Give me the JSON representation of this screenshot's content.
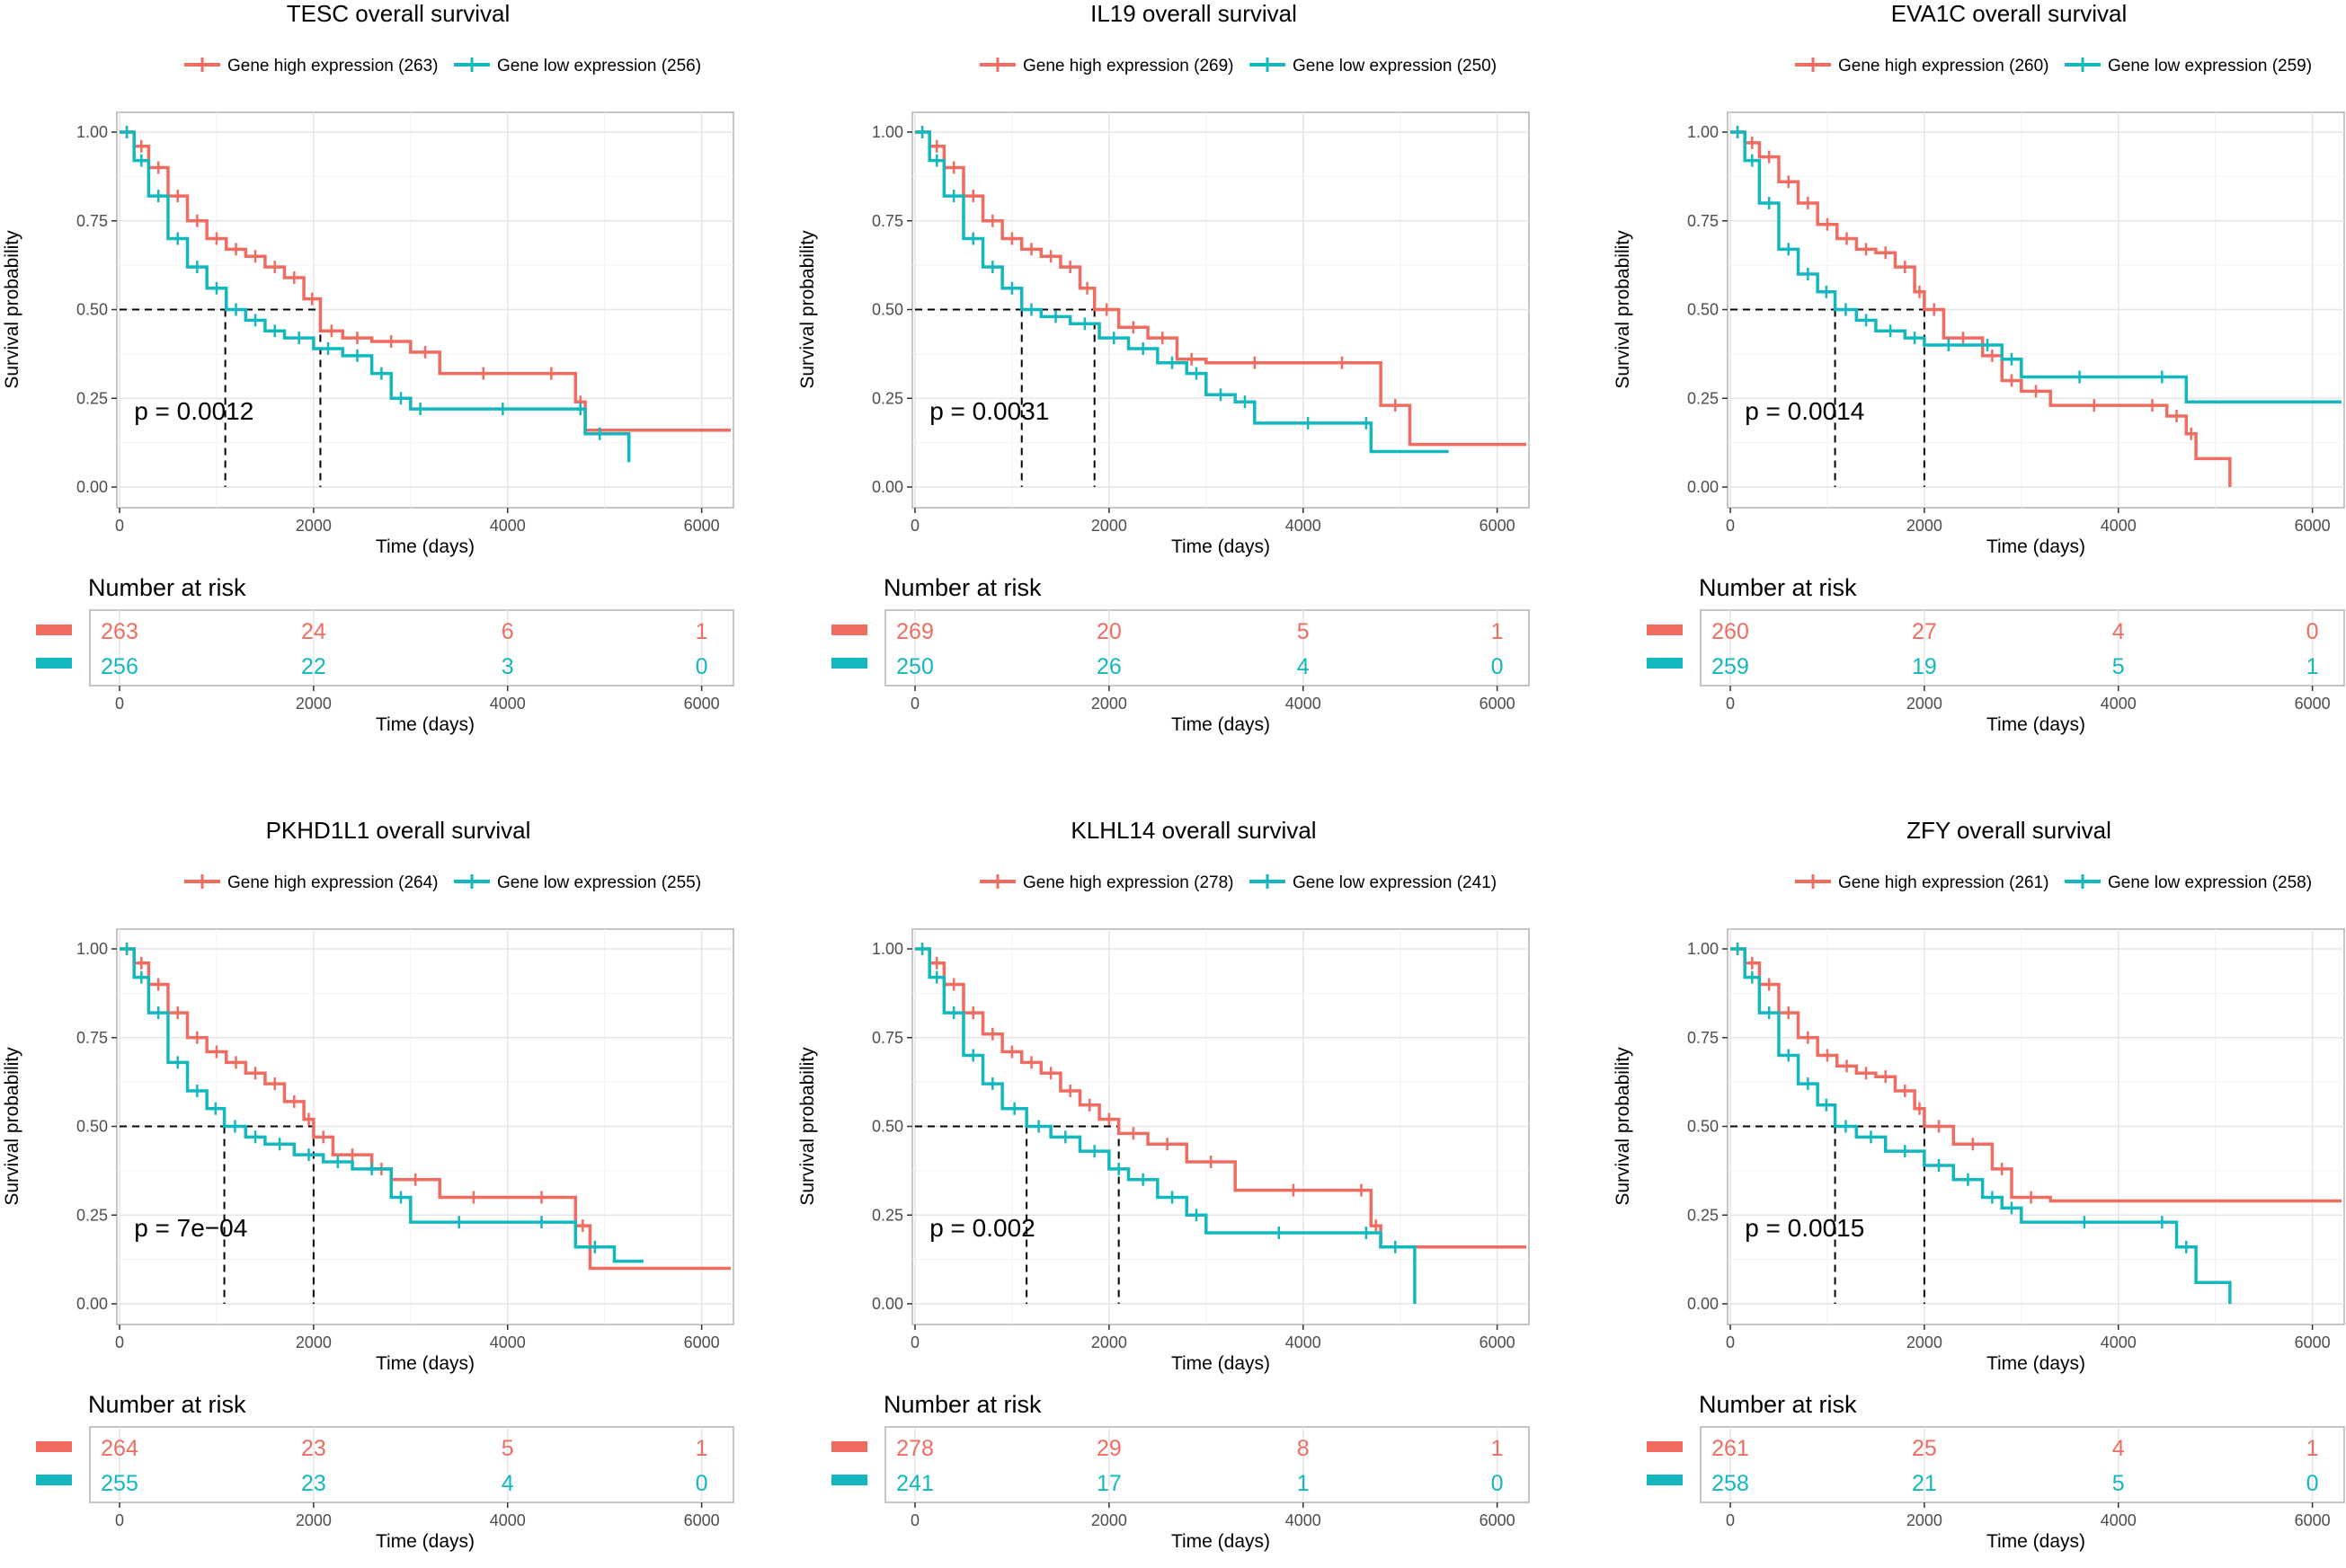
{
  "colors": {
    "high": "#F06C61",
    "low": "#12B8BE",
    "grid": "#E6E6E6",
    "frame": "#B3B3B3",
    "text": "#000000",
    "tick_text": "#4D4D4D",
    "dashed": "#000000"
  },
  "chart_data": [
    {
      "type": "line",
      "subtype": "kaplan-meier",
      "title": "TESC overall survival",
      "xlabel": "Time (days)",
      "ylabel": "Survival probability",
      "xlim": [
        0,
        6300
      ],
      "ylim": [
        0,
        1
      ],
      "xticks": [
        "0",
        "2000",
        "4000",
        "6000"
      ],
      "yticks": [
        "0.00",
        "0.25",
        "0.50",
        "0.75",
        "1.00"
      ],
      "pvalue": "p = 0.0012",
      "legend": {
        "high": "Gene high expression (263)",
        "low": "Gene low expression (256)"
      },
      "median": {
        "high": 2070,
        "low": 1090
      },
      "series": [
        {
          "name": "high",
          "x": [
            0,
            150,
            300,
            500,
            700,
            900,
            1100,
            1300,
            1500,
            1700,
            1900,
            2070,
            2300,
            2600,
            3000,
            3300,
            4200,
            4700,
            4800,
            6300
          ],
          "y": [
            1.0,
            0.96,
            0.9,
            0.82,
            0.75,
            0.7,
            0.67,
            0.65,
            0.62,
            0.59,
            0.53,
            0.44,
            0.42,
            0.41,
            0.38,
            0.32,
            0.32,
            0.24,
            0.16,
            0.16
          ]
        },
        {
          "name": "low",
          "x": [
            0,
            150,
            300,
            500,
            700,
            900,
            1100,
            1300,
            1500,
            1700,
            2000,
            2300,
            2600,
            2800,
            3000,
            3200,
            4700,
            4800,
            5100,
            5250
          ],
          "y": [
            1.0,
            0.92,
            0.82,
            0.7,
            0.62,
            0.56,
            0.5,
            0.47,
            0.44,
            0.42,
            0.39,
            0.37,
            0.32,
            0.25,
            0.22,
            0.22,
            0.22,
            0.15,
            0.15,
            0.07
          ]
        }
      ],
      "risk_table": {
        "title": "Number at risk",
        "high": [
          "263",
          "24",
          "6",
          "1"
        ],
        "low": [
          "256",
          "22",
          "3",
          "0"
        ]
      }
    },
    {
      "type": "line",
      "subtype": "kaplan-meier",
      "title": "IL19 overall survival",
      "xlabel": "Time (days)",
      "ylabel": "Survival probability",
      "xlim": [
        0,
        6300
      ],
      "ylim": [
        0,
        1
      ],
      "xticks": [
        "0",
        "2000",
        "4000",
        "6000"
      ],
      "yticks": [
        "0.00",
        "0.25",
        "0.50",
        "0.75",
        "1.00"
      ],
      "pvalue": "p = 0.0031",
      "legend": {
        "high": "Gene high expression (269)",
        "low": "Gene low expression (250)"
      },
      "median": {
        "high": 1850,
        "low": 1100
      },
      "series": [
        {
          "name": "high",
          "x": [
            0,
            150,
            300,
            500,
            700,
            900,
            1100,
            1300,
            1500,
            1700,
            1850,
            2100,
            2400,
            2700,
            3000,
            4000,
            4800,
            5100,
            6300
          ],
          "y": [
            1.0,
            0.96,
            0.9,
            0.82,
            0.75,
            0.7,
            0.67,
            0.65,
            0.62,
            0.56,
            0.5,
            0.45,
            0.42,
            0.36,
            0.35,
            0.35,
            0.23,
            0.12,
            0.12
          ]
        },
        {
          "name": "low",
          "x": [
            0,
            150,
            300,
            500,
            700,
            900,
            1100,
            1300,
            1600,
            1900,
            2200,
            2500,
            2800,
            3000,
            3300,
            3500,
            4600,
            4700,
            5500
          ],
          "y": [
            1.0,
            0.92,
            0.82,
            0.7,
            0.62,
            0.56,
            0.5,
            0.48,
            0.46,
            0.42,
            0.39,
            0.35,
            0.32,
            0.26,
            0.24,
            0.18,
            0.18,
            0.1,
            0.1
          ]
        }
      ],
      "risk_table": {
        "title": "Number at risk",
        "high": [
          "269",
          "20",
          "5",
          "1"
        ],
        "low": [
          "250",
          "26",
          "4",
          "0"
        ]
      }
    },
    {
      "type": "line",
      "subtype": "kaplan-meier",
      "title": "EVA1C overall survival",
      "xlabel": "Time (days)",
      "ylabel": "Survival probability",
      "xlim": [
        0,
        6300
      ],
      "ylim": [
        0,
        1
      ],
      "xticks": [
        "0",
        "2000",
        "4000",
        "6000"
      ],
      "yticks": [
        "0.00",
        "0.25",
        "0.50",
        "0.75",
        "1.00"
      ],
      "pvalue": "p = 0.0014",
      "legend": {
        "high": "Gene high expression (260)",
        "low": "Gene low expression (259)"
      },
      "median": {
        "high": 2000,
        "low": 1080
      },
      "series": [
        {
          "name": "high",
          "x": [
            0,
            150,
            300,
            500,
            700,
            900,
            1100,
            1300,
            1500,
            1700,
            1900,
            2000,
            2200,
            2600,
            2800,
            3000,
            3300,
            4200,
            4500,
            4700,
            4800,
            5150
          ],
          "y": [
            1.0,
            0.97,
            0.93,
            0.86,
            0.8,
            0.74,
            0.7,
            0.67,
            0.66,
            0.62,
            0.55,
            0.5,
            0.42,
            0.37,
            0.3,
            0.27,
            0.23,
            0.23,
            0.2,
            0.15,
            0.08,
            0.0
          ]
        },
        {
          "name": "low",
          "x": [
            0,
            150,
            300,
            500,
            700,
            900,
            1080,
            1300,
            1500,
            1800,
            2000,
            2500,
            2800,
            3000,
            4200,
            4700,
            6300
          ],
          "y": [
            1.0,
            0.92,
            0.8,
            0.67,
            0.6,
            0.55,
            0.5,
            0.47,
            0.44,
            0.42,
            0.4,
            0.4,
            0.36,
            0.31,
            0.31,
            0.24,
            0.24
          ]
        }
      ],
      "risk_table": {
        "title": "Number at risk",
        "high": [
          "260",
          "27",
          "4",
          "0"
        ],
        "low": [
          "259",
          "19",
          "5",
          "1"
        ]
      }
    },
    {
      "type": "line",
      "subtype": "kaplan-meier",
      "title": "PKHD1L1 overall survival",
      "xlabel": "Time (days)",
      "ylabel": "Survival probability",
      "xlim": [
        0,
        6300
      ],
      "ylim": [
        0,
        1
      ],
      "xticks": [
        "0",
        "2000",
        "4000",
        "6000"
      ],
      "yticks": [
        "0.00",
        "0.25",
        "0.50",
        "0.75",
        "1.00"
      ],
      "pvalue": "p = 7e−04",
      "legend": {
        "high": "Gene high expression (264)",
        "low": "Gene low expression (255)"
      },
      "median": {
        "high": 2000,
        "low": 1080
      },
      "series": [
        {
          "name": "high",
          "x": [
            0,
            150,
            300,
            500,
            700,
            900,
            1100,
            1300,
            1500,
            1700,
            1900,
            2000,
            2200,
            2600,
            2800,
            3300,
            4000,
            4700,
            4850,
            6300
          ],
          "y": [
            1.0,
            0.96,
            0.9,
            0.82,
            0.75,
            0.71,
            0.68,
            0.65,
            0.62,
            0.57,
            0.52,
            0.47,
            0.42,
            0.38,
            0.35,
            0.3,
            0.3,
            0.22,
            0.1,
            0.1
          ]
        },
        {
          "name": "low",
          "x": [
            0,
            150,
            300,
            500,
            700,
            900,
            1080,
            1300,
            1500,
            1800,
            2100,
            2400,
            2800,
            3000,
            4000,
            4700,
            5100,
            5400
          ],
          "y": [
            1.0,
            0.92,
            0.82,
            0.68,
            0.6,
            0.55,
            0.5,
            0.47,
            0.45,
            0.42,
            0.4,
            0.38,
            0.3,
            0.23,
            0.23,
            0.16,
            0.12,
            0.12
          ]
        }
      ],
      "risk_table": {
        "title": "Number at risk",
        "high": [
          "264",
          "23",
          "5",
          "1"
        ],
        "low": [
          "255",
          "23",
          "4",
          "0"
        ]
      }
    },
    {
      "type": "line",
      "subtype": "kaplan-meier",
      "title": "KLHL14 overall survival",
      "xlabel": "Time (days)",
      "ylabel": "Survival probability",
      "xlim": [
        0,
        6300
      ],
      "ylim": [
        0,
        1
      ],
      "xticks": [
        "0",
        "2000",
        "4000",
        "6000"
      ],
      "yticks": [
        "0.00",
        "0.25",
        "0.50",
        "0.75",
        "1.00"
      ],
      "pvalue": "p = 0.002",
      "legend": {
        "high": "Gene high expression (278)",
        "low": "Gene low expression (241)"
      },
      "median": {
        "high": 2100,
        "low": 1150
      },
      "series": [
        {
          "name": "high",
          "x": [
            0,
            150,
            300,
            500,
            700,
            900,
            1100,
            1300,
            1500,
            1700,
            1900,
            2100,
            2400,
            2800,
            3300,
            4500,
            4700,
            4800,
            6300
          ],
          "y": [
            1.0,
            0.96,
            0.9,
            0.82,
            0.76,
            0.71,
            0.68,
            0.65,
            0.6,
            0.56,
            0.52,
            0.48,
            0.45,
            0.4,
            0.32,
            0.32,
            0.22,
            0.16,
            0.16
          ]
        },
        {
          "name": "low",
          "x": [
            0,
            150,
            300,
            500,
            700,
            900,
            1150,
            1400,
            1700,
            2000,
            2200,
            2500,
            2800,
            3000,
            4500,
            4800,
            5100,
            5150
          ],
          "y": [
            1.0,
            0.92,
            0.82,
            0.7,
            0.62,
            0.55,
            0.5,
            0.47,
            0.43,
            0.38,
            0.35,
            0.3,
            0.25,
            0.2,
            0.2,
            0.16,
            0.16,
            0.0
          ]
        }
      ],
      "risk_table": {
        "title": "Number at risk",
        "high": [
          "278",
          "29",
          "8",
          "1"
        ],
        "low": [
          "241",
          "17",
          "1",
          "0"
        ]
      }
    },
    {
      "type": "line",
      "subtype": "kaplan-meier",
      "title": "ZFY overall survival",
      "xlabel": "Time (days)",
      "ylabel": "Survival probability",
      "xlim": [
        0,
        6300
      ],
      "ylim": [
        0,
        1
      ],
      "xticks": [
        "0",
        "2000",
        "4000",
        "6000"
      ],
      "yticks": [
        "0.00",
        "0.25",
        "0.50",
        "0.75",
        "1.00"
      ],
      "pvalue": "p = 0.0015",
      "legend": {
        "high": "Gene high expression (261)",
        "low": "Gene low expression (258)"
      },
      "median": {
        "high": 2000,
        "low": 1080
      },
      "series": [
        {
          "name": "high",
          "x": [
            0,
            150,
            300,
            500,
            700,
            900,
            1100,
            1300,
            1500,
            1700,
            1900,
            2000,
            2300,
            2700,
            2900,
            3300,
            6300
          ],
          "y": [
            1.0,
            0.96,
            0.9,
            0.82,
            0.75,
            0.7,
            0.67,
            0.65,
            0.64,
            0.6,
            0.55,
            0.5,
            0.45,
            0.38,
            0.3,
            0.29,
            0.29
          ]
        },
        {
          "name": "low",
          "x": [
            0,
            150,
            300,
            500,
            700,
            900,
            1080,
            1300,
            1600,
            2000,
            2300,
            2600,
            2800,
            3000,
            4300,
            4600,
            4800,
            5150
          ],
          "y": [
            1.0,
            0.92,
            0.82,
            0.7,
            0.62,
            0.56,
            0.5,
            0.47,
            0.43,
            0.39,
            0.35,
            0.3,
            0.27,
            0.23,
            0.23,
            0.16,
            0.06,
            0.0
          ]
        }
      ],
      "risk_table": {
        "title": "Number at risk",
        "high": [
          "261",
          "25",
          "4",
          "1"
        ],
        "low": [
          "258",
          "21",
          "5",
          "0"
        ]
      }
    }
  ]
}
